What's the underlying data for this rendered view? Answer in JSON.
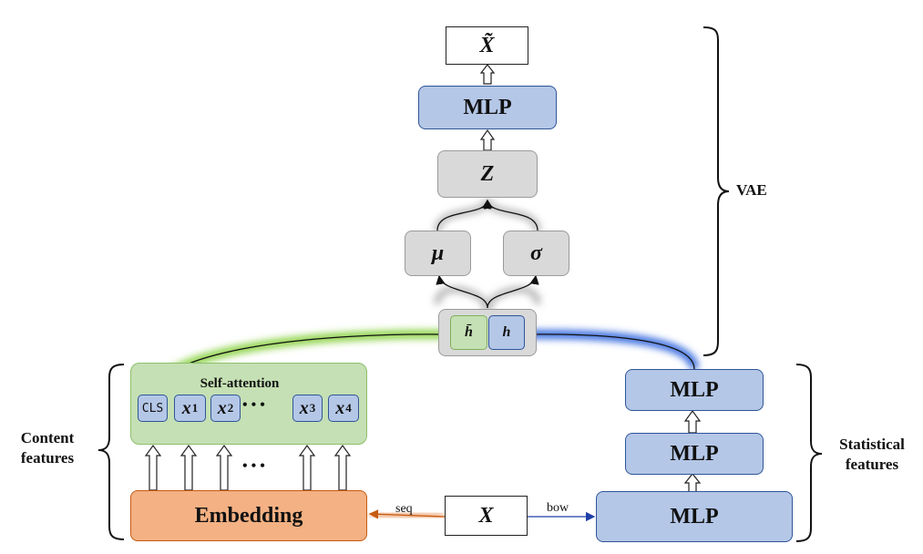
{
  "diagram": {
    "output_symbol": "X̃",
    "decoder_mlp": "MLP",
    "latent": "Z",
    "mu": "μ",
    "sigma": "σ",
    "h_bar": "h̄",
    "h": "h",
    "self_attention": "Self-attention",
    "cls_token": "CLS",
    "tokens": [
      {
        "sym": "x",
        "sub": "1"
      },
      {
        "sym": "x",
        "sub": "2"
      },
      {
        "sym": "x",
        "sub": "3"
      },
      {
        "sym": "x",
        "sub": "4"
      }
    ],
    "dots": "• • •",
    "embedding": "Embedding",
    "input_symbol": "X",
    "seq_label": "seq",
    "bow_label": "bow",
    "stat_mlps": [
      "MLP",
      "MLP",
      "MLP"
    ],
    "vae_label": "VAE",
    "content_label_line1": "Content",
    "content_label_line2": "features",
    "statistical_label_line1": "Statistical",
    "statistical_label_line2": "features"
  },
  "colors": {
    "blue_fill": "#b4c7e7",
    "grey_fill": "#d9d9d9",
    "green_fill": "#c5e0b4",
    "orange_fill": "#f4b183",
    "green_glow": "#8ed34a",
    "blue_glow": "#3d6fe0",
    "orange_arrow": "#e06b1f"
  }
}
